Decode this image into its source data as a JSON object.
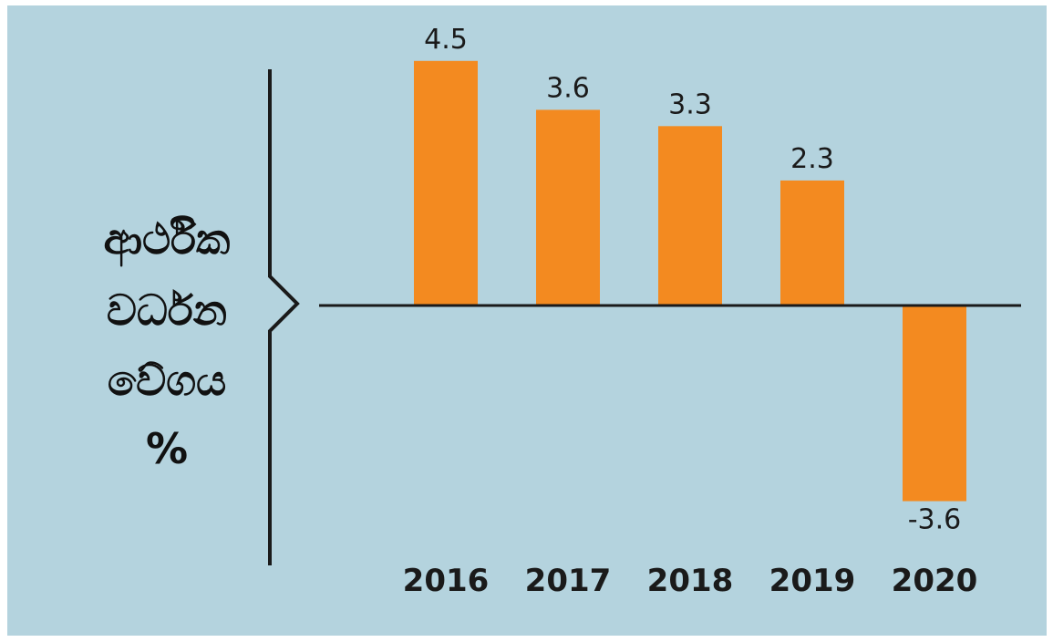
{
  "chart_data": {
    "type": "bar",
    "categories": [
      "2016",
      "2017",
      "2018",
      "2019",
      "2020"
    ],
    "values": [
      4.5,
      3.6,
      3.3,
      2.3,
      -3.6
    ],
    "data_labels": [
      "4.5",
      "3.6",
      "3.3",
      "2.3",
      "-3.6"
    ],
    "ylabel_lines": [
      "ආර්ථික",
      "වර්ධන",
      "වේගය",
      "%"
    ],
    "ylim": [
      -4.4,
      5.2
    ],
    "grid": false,
    "colors": {
      "bar": "#f38a20",
      "background": "#b4d3de",
      "axis": "#1a1a1a",
      "text": "#1a1a1a"
    }
  }
}
